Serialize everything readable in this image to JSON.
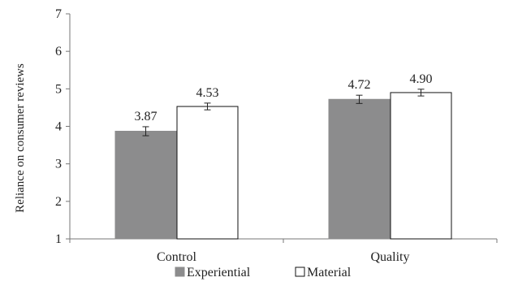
{
  "chart_data": {
    "type": "bar",
    "ylabel": "Reliance on consumer reviews",
    "xlabel": "",
    "ylim": [
      1,
      7
    ],
    "yticks": [
      1,
      2,
      3,
      4,
      5,
      6,
      7
    ],
    "categories": [
      "Control",
      "Quality"
    ],
    "series": [
      {
        "name": "Experiential",
        "values": [
          3.87,
          4.72
        ],
        "labels": [
          "3.87",
          "4.72"
        ],
        "error": [
          0.12,
          0.11
        ],
        "color": "#8c8c8d",
        "outline": "#8c8c8d"
      },
      {
        "name": "Material",
        "values": [
          4.53,
          4.9
        ],
        "labels": [
          "4.53",
          "4.90"
        ],
        "error": [
          0.09,
          0.09
        ],
        "color": "#ffffff",
        "outline": "#111111"
      }
    ],
    "grid": false,
    "legend_position": "bottom"
  }
}
